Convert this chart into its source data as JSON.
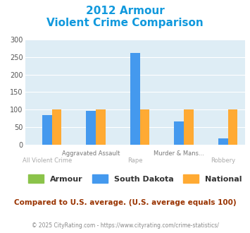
{
  "title_line1": "2012 Armour",
  "title_line2": "Violent Crime Comparison",
  "categories_top": [
    "",
    "Aggravated Assault",
    "",
    "Murder & Mans...",
    ""
  ],
  "categories_bottom": [
    "All Violent Crime",
    "",
    "Rape",
    "",
    "Robbery"
  ],
  "series": {
    "Armour": [
      0,
      0,
      0,
      0,
      0
    ],
    "South Dakota": [
      85,
      97,
      262,
      65,
      17
    ],
    "National": [
      100,
      100,
      100,
      100,
      100
    ]
  },
  "colors": {
    "Armour": "#8bc34a",
    "South Dakota": "#4499ee",
    "National": "#ffaa33"
  },
  "ylim": [
    0,
    300
  ],
  "yticks": [
    0,
    50,
    100,
    150,
    200,
    250,
    300
  ],
  "plot_bg": "#deedf5",
  "title_color": "#1199dd",
  "footer_text": "Compared to U.S. average. (U.S. average equals 100)",
  "copyright_text": "© 2025 CityRating.com - https://www.cityrating.com/crime-statistics/",
  "footer_color": "#993300",
  "copyright_color": "#888888",
  "legend_entries": [
    "Armour",
    "South Dakota",
    "National"
  ]
}
